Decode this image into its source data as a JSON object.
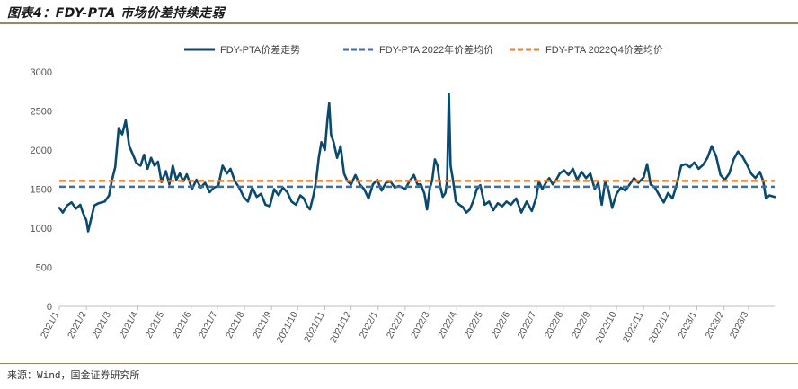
{
  "figure": {
    "title": "图表4：FDY-PTA 市场价差持续走弱",
    "source": "来源：Wind，国金证券研究所"
  },
  "chart_data": {
    "type": "line",
    "ylim": [
      0,
      3000
    ],
    "yticks": [
      0,
      500,
      1000,
      1500,
      2000,
      2500,
      3000
    ],
    "x_range": [
      "2021-01-01",
      "2023-03-31"
    ],
    "x_ticks": [
      "2021/1",
      "2021/2",
      "2021/3",
      "2021/4",
      "2021/5",
      "2021/6",
      "2021/7",
      "2021/8",
      "2021/9",
      "2021/10",
      "2021/11",
      "2021/12",
      "2022/1",
      "2022/2",
      "2022/3",
      "2022/4",
      "2022/5",
      "2022/6",
      "2022/7",
      "2022/8",
      "2022/9",
      "2022/10",
      "2022/11",
      "2022/12",
      "2023/1",
      "2023/2",
      "2023/3"
    ],
    "legend_position": "top",
    "grid": false,
    "series": [
      {
        "name": "FDY-PTA价差走势",
        "style": "solid",
        "color": "#0b4a6e",
        "points": [
          [
            "2021-01-01",
            1260
          ],
          [
            "2021-01-05",
            1200
          ],
          [
            "2021-01-10",
            1290
          ],
          [
            "2021-01-15",
            1330
          ],
          [
            "2021-01-20",
            1250
          ],
          [
            "2021-01-25",
            1300
          ],
          [
            "2021-01-28",
            1200
          ],
          [
            "2021-02-01",
            1100
          ],
          [
            "2021-02-03",
            960
          ],
          [
            "2021-02-06",
            1100
          ],
          [
            "2021-02-10",
            1290
          ],
          [
            "2021-02-15",
            1320
          ],
          [
            "2021-02-22",
            1340
          ],
          [
            "2021-02-27",
            1420
          ],
          [
            "2021-03-02",
            1600
          ],
          [
            "2021-03-06",
            1780
          ],
          [
            "2021-03-10",
            2280
          ],
          [
            "2021-03-14",
            2200
          ],
          [
            "2021-03-18",
            2380
          ],
          [
            "2021-03-22",
            2050
          ],
          [
            "2021-03-26",
            1950
          ],
          [
            "2021-03-30",
            1840
          ],
          [
            "2021-04-04",
            1800
          ],
          [
            "2021-04-08",
            1940
          ],
          [
            "2021-04-12",
            1760
          ],
          [
            "2021-04-16",
            1900
          ],
          [
            "2021-04-20",
            1800
          ],
          [
            "2021-04-24",
            1850
          ],
          [
            "2021-04-28",
            1590
          ],
          [
            "2021-05-03",
            1730
          ],
          [
            "2021-05-07",
            1560
          ],
          [
            "2021-05-11",
            1800
          ],
          [
            "2021-05-15",
            1620
          ],
          [
            "2021-05-19",
            1700
          ],
          [
            "2021-05-23",
            1600
          ],
          [
            "2021-05-27",
            1690
          ],
          [
            "2021-06-02",
            1500
          ],
          [
            "2021-06-07",
            1620
          ],
          [
            "2021-06-12",
            1520
          ],
          [
            "2021-06-17",
            1580
          ],
          [
            "2021-06-22",
            1460
          ],
          [
            "2021-06-27",
            1520
          ],
          [
            "2021-07-02",
            1540
          ],
          [
            "2021-07-07",
            1800
          ],
          [
            "2021-07-12",
            1700
          ],
          [
            "2021-07-16",
            1760
          ],
          [
            "2021-07-21",
            1600
          ],
          [
            "2021-07-26",
            1520
          ],
          [
            "2021-07-31",
            1400
          ],
          [
            "2021-08-05",
            1340
          ],
          [
            "2021-08-10",
            1520
          ],
          [
            "2021-08-15",
            1400
          ],
          [
            "2021-08-20",
            1440
          ],
          [
            "2021-08-25",
            1300
          ],
          [
            "2021-08-30",
            1280
          ],
          [
            "2021-09-04",
            1500
          ],
          [
            "2021-09-09",
            1420
          ],
          [
            "2021-09-14",
            1520
          ],
          [
            "2021-09-19",
            1460
          ],
          [
            "2021-09-24",
            1340
          ],
          [
            "2021-09-29",
            1300
          ],
          [
            "2021-10-04",
            1420
          ],
          [
            "2021-10-08",
            1380
          ],
          [
            "2021-10-12",
            1280
          ],
          [
            "2021-10-15",
            1240
          ],
          [
            "2021-10-19",
            1420
          ],
          [
            "2021-10-22",
            1600
          ],
          [
            "2021-10-25",
            1900
          ],
          [
            "2021-10-28",
            2100
          ],
          [
            "2021-11-01",
            2000
          ],
          [
            "2021-11-04",
            2400
          ],
          [
            "2021-11-06",
            2600
          ],
          [
            "2021-11-08",
            2200
          ],
          [
            "2021-11-11",
            2100
          ],
          [
            "2021-11-15",
            1900
          ],
          [
            "2021-11-19",
            2050
          ],
          [
            "2021-11-23",
            1700
          ],
          [
            "2021-11-27",
            1600
          ],
          [
            "2021-12-01",
            1560
          ],
          [
            "2021-12-06",
            1680
          ],
          [
            "2021-12-11",
            1560
          ],
          [
            "2021-12-16",
            1500
          ],
          [
            "2021-12-21",
            1380
          ],
          [
            "2021-12-26",
            1560
          ],
          [
            "2021-12-31",
            1620
          ],
          [
            "2022-01-05",
            1480
          ],
          [
            "2022-01-10",
            1580
          ],
          [
            "2022-01-15",
            1600
          ],
          [
            "2022-01-20",
            1520
          ],
          [
            "2022-01-25",
            1540
          ],
          [
            "2022-02-01",
            1500
          ],
          [
            "2022-02-06",
            1600
          ],
          [
            "2022-02-11",
            1680
          ],
          [
            "2022-02-15",
            1560
          ],
          [
            "2022-02-19",
            1560
          ],
          [
            "2022-02-23",
            1440
          ],
          [
            "2022-02-26",
            1240
          ],
          [
            "2022-03-01",
            1500
          ],
          [
            "2022-03-04",
            1620
          ],
          [
            "2022-03-07",
            1880
          ],
          [
            "2022-03-10",
            1800
          ],
          [
            "2022-03-13",
            1540
          ],
          [
            "2022-03-16",
            1400
          ],
          [
            "2022-03-19",
            1450
          ],
          [
            "2022-03-21",
            1600
          ],
          [
            "2022-03-23",
            2720
          ],
          [
            "2022-03-25",
            1800
          ],
          [
            "2022-03-28",
            1600
          ],
          [
            "2022-03-31",
            1340
          ],
          [
            "2022-04-04",
            1300
          ],
          [
            "2022-04-08",
            1270
          ],
          [
            "2022-04-12",
            1200
          ],
          [
            "2022-04-16",
            1240
          ],
          [
            "2022-04-20",
            1350
          ],
          [
            "2022-04-24",
            1500
          ],
          [
            "2022-04-28",
            1550
          ],
          [
            "2022-05-03",
            1300
          ],
          [
            "2022-05-08",
            1340
          ],
          [
            "2022-05-13",
            1230
          ],
          [
            "2022-05-18",
            1320
          ],
          [
            "2022-05-23",
            1280
          ],
          [
            "2022-05-28",
            1340
          ],
          [
            "2022-06-02",
            1300
          ],
          [
            "2022-06-08",
            1380
          ],
          [
            "2022-06-14",
            1200
          ],
          [
            "2022-06-20",
            1340
          ],
          [
            "2022-06-26",
            1220
          ],
          [
            "2022-07-01",
            1390
          ],
          [
            "2022-07-04",
            1600
          ],
          [
            "2022-07-08",
            1500
          ],
          [
            "2022-07-12",
            1580
          ],
          [
            "2022-07-16",
            1640
          ],
          [
            "2022-07-20",
            1560
          ],
          [
            "2022-07-24",
            1620
          ],
          [
            "2022-07-28",
            1700
          ],
          [
            "2022-08-02",
            1740
          ],
          [
            "2022-08-07",
            1680
          ],
          [
            "2022-08-12",
            1760
          ],
          [
            "2022-08-17",
            1620
          ],
          [
            "2022-08-22",
            1720
          ],
          [
            "2022-08-27",
            1640
          ],
          [
            "2022-09-01",
            1700
          ],
          [
            "2022-09-06",
            1500
          ],
          [
            "2022-09-10",
            1580
          ],
          [
            "2022-09-14",
            1300
          ],
          [
            "2022-09-18",
            1600
          ],
          [
            "2022-09-22",
            1480
          ],
          [
            "2022-09-26",
            1260
          ],
          [
            "2022-10-01",
            1440
          ],
          [
            "2022-10-06",
            1520
          ],
          [
            "2022-10-11",
            1480
          ],
          [
            "2022-10-16",
            1560
          ],
          [
            "2022-10-21",
            1640
          ],
          [
            "2022-10-26",
            1580
          ],
          [
            "2022-11-01",
            1650
          ],
          [
            "2022-11-05",
            1820
          ],
          [
            "2022-11-09",
            1560
          ],
          [
            "2022-11-14",
            1520
          ],
          [
            "2022-11-19",
            1420
          ],
          [
            "2022-11-24",
            1330
          ],
          [
            "2022-11-29",
            1450
          ],
          [
            "2022-12-04",
            1380
          ],
          [
            "2022-12-09",
            1560
          ],
          [
            "2022-12-14",
            1800
          ],
          [
            "2022-12-19",
            1820
          ],
          [
            "2022-12-24",
            1780
          ],
          [
            "2022-12-29",
            1840
          ],
          [
            "2023-01-03",
            1760
          ],
          [
            "2023-01-08",
            1810
          ],
          [
            "2023-01-13",
            1900
          ],
          [
            "2023-01-18",
            2050
          ],
          [
            "2023-01-23",
            1920
          ],
          [
            "2023-01-28",
            1680
          ],
          [
            "2023-02-02",
            1620
          ],
          [
            "2023-02-07",
            1700
          ],
          [
            "2023-02-12",
            1880
          ],
          [
            "2023-02-17",
            1980
          ],
          [
            "2023-02-22",
            1920
          ],
          [
            "2023-02-27",
            1820
          ],
          [
            "2023-03-04",
            1700
          ],
          [
            "2023-03-09",
            1640
          ],
          [
            "2023-03-14",
            1720
          ],
          [
            "2023-03-18",
            1600
          ],
          [
            "2023-03-21",
            1380
          ],
          [
            "2023-03-25",
            1420
          ],
          [
            "2023-03-31",
            1400
          ]
        ]
      },
      {
        "name": "FDY-PTA 2022年价差均价",
        "style": "dashed",
        "color": "#3b6ea8",
        "value": 1530
      },
      {
        "name": "FDY-PTA 2022Q4价差均价",
        "style": "dashed",
        "color": "#ed7d31",
        "value": 1605
      }
    ]
  }
}
